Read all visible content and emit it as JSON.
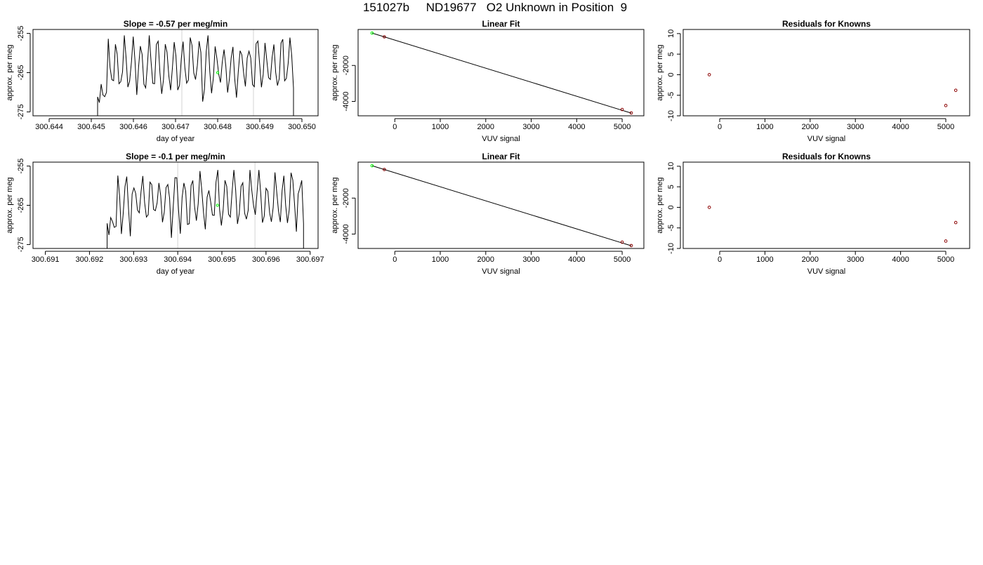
{
  "page_title": "151027b     ND19677   O2 Unknown in Position  9",
  "colors": {
    "line": "#000000",
    "grid": "#d3d3d3",
    "known_point": "#8b0000",
    "unknown_point": "#00ff00",
    "axes": "#000000"
  },
  "chart_data": [
    {
      "type": "line",
      "panel": "row1-timeseries",
      "title": "Slope =  -0.57  per meg/min",
      "xlabel": "day of year",
      "ylabel": "approx. per meg",
      "xlim": [
        300.6437,
        300.6503
      ],
      "ylim": [
        -276,
        -254
      ],
      "xticks": [
        300.644,
        300.645,
        300.646,
        300.647,
        300.648,
        300.649,
        300.65
      ],
      "xtick_labels": [
        "300.644",
        "300.645",
        "300.646",
        "300.647",
        "300.648",
        "300.649",
        "300.650"
      ],
      "yticks": [
        -275,
        -265,
        -255
      ],
      "ytick_labels": [
        "-275",
        "-265",
        "-255"
      ],
      "vlines": [
        300.64715,
        300.64885
      ],
      "trace": {
        "x_start": 300.64515,
        "x_end": 300.6498,
        "y_min": -276,
        "y_max": -255.5,
        "center": -263.5,
        "seed": 7
      },
      "unknown_point": {
        "x": 300.648,
        "y": -265
      }
    },
    {
      "type": "scatter",
      "panel": "row1-linearfit",
      "title": "Linear Fit",
      "xlabel": "VUV signal",
      "ylabel": "approx. per meg",
      "xlim": [
        -730,
        5400
      ],
      "ylim": [
        -4800,
        0
      ],
      "xticks": [
        0,
        1000,
        2000,
        3000,
        4000,
        5000
      ],
      "xtick_labels": [
        "0",
        "1000",
        "2000",
        "3000",
        "4000",
        "5000"
      ],
      "yticks": [
        -4000,
        -2000
      ],
      "ytick_labels": [
        "-4000",
        "-2000"
      ],
      "fit_line": {
        "x": [
          -500,
          5200
        ],
        "y": [
          -200,
          -4650
        ]
      },
      "points_known": [
        {
          "x": -230,
          "y": -410
        },
        {
          "x": 5000,
          "y": -4450
        },
        {
          "x": 5200,
          "y": -4640
        }
      ],
      "points_unknown": [
        {
          "x": -500,
          "y": -200
        }
      ]
    },
    {
      "type": "scatter",
      "panel": "row1-residuals",
      "title": "Residuals for Knowns",
      "xlabel": "VUV signal",
      "ylabel": "approx. per meg",
      "xlim": [
        -730,
        5450
      ],
      "ylim": [
        -10,
        11
      ],
      "xticks": [
        0,
        1000,
        2000,
        3000,
        4000,
        5000
      ],
      "xtick_labels": [
        "0",
        "1000",
        "2000",
        "3000",
        "4000",
        "5000"
      ],
      "yticks": [
        -10,
        -5,
        0,
        5,
        10
      ],
      "ytick_labels": [
        "-10",
        "-5",
        "0",
        "5",
        "10"
      ],
      "points_known": [
        {
          "x": -230,
          "y": 0
        },
        {
          "x": 5000,
          "y": -7.5
        },
        {
          "x": 5220,
          "y": -3.8
        }
      ]
    },
    {
      "type": "line",
      "panel": "row2-timeseries",
      "title": "Slope =  -0.1  per meg/min",
      "xlabel": "day of year",
      "ylabel": "approx. per meg",
      "xlim": [
        300.6908,
        300.6971
      ],
      "ylim": [
        -276,
        -254
      ],
      "xticks": [
        300.691,
        300.692,
        300.693,
        300.694,
        300.695,
        300.696,
        300.697
      ],
      "xtick_labels": [
        "300.691",
        "300.692",
        "300.693",
        "300.694",
        "300.695",
        "300.696",
        "300.697"
      ],
      "yticks": [
        -275,
        -265,
        -255
      ],
      "ytick_labels": [
        "-275",
        "-265",
        "-255"
      ],
      "vlines": [
        300.694,
        300.69575
      ],
      "trace": {
        "x_start": 300.6924,
        "x_end": 300.69685,
        "y_min": -276,
        "y_max": -256,
        "center": -263.5,
        "seed": 11
      },
      "unknown_point": {
        "x": 300.6949,
        "y": -265
      }
    },
    {
      "type": "scatter",
      "panel": "row2-linearfit",
      "title": "Linear Fit",
      "xlabel": "VUV signal",
      "ylabel": "approx. per meg",
      "xlim": [
        -730,
        5400
      ],
      "ylim": [
        -4800,
        0
      ],
      "xticks": [
        0,
        1000,
        2000,
        3000,
        4000,
        5000
      ],
      "xtick_labels": [
        "0",
        "1000",
        "2000",
        "3000",
        "4000",
        "5000"
      ],
      "yticks": [
        -4000,
        -2000
      ],
      "ytick_labels": [
        "-4000",
        "-2000"
      ],
      "fit_line": {
        "x": [
          -500,
          5200
        ],
        "y": [
          -200,
          -4650
        ]
      },
      "points_known": [
        {
          "x": -230,
          "y": -410
        },
        {
          "x": 5000,
          "y": -4450
        },
        {
          "x": 5200,
          "y": -4640
        }
      ],
      "points_unknown": [
        {
          "x": -500,
          "y": -200
        }
      ]
    },
    {
      "type": "scatter",
      "panel": "row2-residuals",
      "title": "Residuals for Knowns",
      "xlabel": "VUV signal",
      "ylabel": "approx. per meg",
      "xlim": [
        -730,
        5450
      ],
      "ylim": [
        -10,
        11
      ],
      "xticks": [
        0,
        1000,
        2000,
        3000,
        4000,
        5000
      ],
      "xtick_labels": [
        "0",
        "1000",
        "2000",
        "3000",
        "4000",
        "5000"
      ],
      "yticks": [
        -10,
        -5,
        0,
        5,
        10
      ],
      "ytick_labels": [
        "-10",
        "-5",
        "0",
        "5",
        "10"
      ],
      "points_known": [
        {
          "x": -230,
          "y": 0
        },
        {
          "x": 5000,
          "y": -8.2
        },
        {
          "x": 5220,
          "y": -3.7
        }
      ]
    }
  ]
}
